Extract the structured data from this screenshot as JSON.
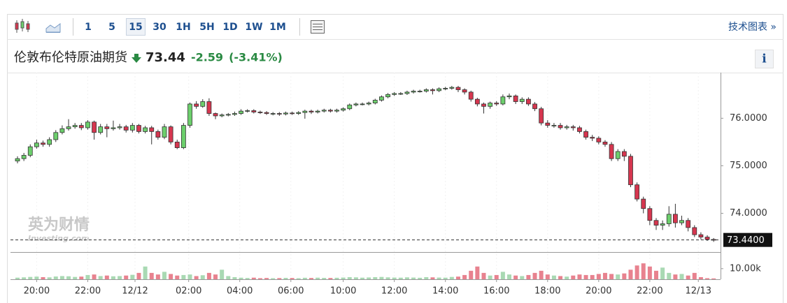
{
  "toolbar": {
    "intervals": [
      "1",
      "5",
      "15",
      "30",
      "1H",
      "5H",
      "1D",
      "1W",
      "1M"
    ],
    "selected_interval": "15",
    "link": "技术图表 »"
  },
  "header": {
    "name": "伦敦布伦特原油期货",
    "price": "73.44",
    "change": "-2.59",
    "change_percent": "(-3.41%)",
    "info": "i"
  },
  "watermark": {
    "brand": "英为财情",
    "site": "Investing.com"
  },
  "chart_data": {
    "type": "candlestick",
    "up_color": "#6ccf6c",
    "down_color": "#d6364f",
    "volume_up_color": "#a9d9b3",
    "volume_down_color": "#e8828f",
    "ylim": [
      73.2,
      76.96
    ],
    "yticks": [
      {
        "value": 76,
        "label": "76.0000"
      },
      {
        "value": 75,
        "label": "75.0000"
      },
      {
        "value": 74,
        "label": "74.0000"
      }
    ],
    "last_price": {
      "value": 73.44,
      "label": "73.4400"
    },
    "y2lim": [
      0,
      25000
    ],
    "y2ticks": [
      {
        "value": 10000,
        "label": "10.00k"
      }
    ],
    "xticks": [
      {
        "value": 3,
        "label": "20:00"
      },
      {
        "value": 11,
        "label": "22:00"
      },
      {
        "value": 18.4,
        "label": "12/12"
      },
      {
        "value": 26.8,
        "label": "02:00"
      },
      {
        "value": 34.8,
        "label": "04:00"
      },
      {
        "value": 42.8,
        "label": "06:00"
      },
      {
        "value": 51,
        "label": "10:00"
      },
      {
        "value": 59,
        "label": "12:00"
      },
      {
        "value": 67,
        "label": "14:00"
      },
      {
        "value": 75,
        "label": "16:00"
      },
      {
        "value": 83,
        "label": "18:00"
      },
      {
        "value": 91,
        "label": "20:00"
      },
      {
        "value": 99,
        "label": "22:00"
      },
      {
        "value": 106.6,
        "label": "12/13"
      }
    ],
    "open": [
      75.1,
      75.15,
      75.22,
      75.4,
      75.48,
      75.45,
      75.55,
      75.7,
      75.78,
      75.82,
      75.85,
      75.8,
      75.92,
      75.7,
      75.82,
      75.78,
      75.8,
      75.82,
      75.75,
      75.85,
      75.72,
      75.8,
      75.72,
      75.6,
      75.82,
      75.5,
      75.38,
      75.85,
      76.3,
      76.25,
      76.35,
      76.1,
      76.05,
      76.07,
      76.08,
      76.1,
      76.15,
      76.16,
      76.13,
      76.12,
      76.1,
      76.1,
      76.09,
      76.11,
      76.1,
      76.12,
      76.15,
      76.13,
      76.15,
      76.17,
      76.15,
      76.17,
      76.2,
      76.28,
      76.3,
      76.3,
      76.32,
      76.38,
      76.45,
      76.5,
      76.52,
      76.52,
      76.55,
      76.57,
      76.57,
      76.6,
      76.58,
      76.62,
      76.63,
      76.65,
      76.6,
      76.55,
      76.4,
      76.3,
      76.25,
      76.32,
      76.3,
      76.45,
      76.47,
      76.35,
      76.4,
      76.3,
      76.2,
      75.9,
      75.85,
      75.85,
      75.8,
      75.82,
      75.8,
      75.72,
      75.6,
      75.58,
      75.5,
      75.45,
      75.15,
      75.3,
      75.2,
      74.6,
      74.3,
      74.1,
      73.85,
      73.75,
      73.78,
      73.98,
      73.8,
      73.85,
      73.7,
      73.55,
      73.5,
      73.45
    ],
    "high": [
      75.2,
      75.27,
      75.45,
      75.55,
      75.53,
      75.6,
      75.75,
      75.85,
      75.98,
      75.9,
      75.9,
      75.96,
      75.95,
      75.88,
      75.88,
      75.95,
      75.88,
      75.86,
      75.9,
      75.88,
      75.84,
      75.84,
      75.76,
      75.88,
      75.85,
      75.55,
      75.9,
      76.33,
      76.36,
      76.4,
      76.42,
      76.12,
      76.1,
      76.11,
      76.14,
      76.19,
      76.19,
      76.19,
      76.16,
      76.15,
      76.13,
      76.13,
      76.14,
      76.14,
      76.15,
      76.18,
      76.18,
      76.18,
      76.2,
      76.2,
      76.2,
      76.23,
      76.31,
      76.33,
      76.33,
      76.35,
      76.41,
      76.48,
      76.53,
      76.55,
      76.55,
      76.58,
      76.6,
      76.6,
      76.63,
      76.63,
      76.65,
      76.66,
      76.68,
      76.68,
      76.63,
      76.58,
      76.43,
      76.33,
      76.35,
      76.36,
      76.5,
      76.52,
      76.5,
      76.44,
      76.44,
      76.34,
      76.24,
      75.96,
      75.9,
      75.9,
      75.86,
      75.86,
      75.84,
      75.76,
      75.65,
      75.62,
      75.54,
      75.5,
      75.35,
      75.35,
      75.25,
      74.65,
      74.35,
      74.15,
      73.9,
      73.85,
      74.15,
      74.2,
      73.95,
      73.9,
      73.75,
      73.6,
      73.54,
      73.48
    ],
    "low": [
      75.05,
      75.1,
      75.18,
      75.36,
      75.4,
      75.4,
      75.5,
      75.66,
      75.74,
      75.78,
      75.75,
      75.76,
      75.55,
      75.66,
      75.6,
      75.74,
      75.76,
      75.7,
      75.7,
      75.68,
      75.68,
      75.45,
      75.55,
      75.56,
      75.45,
      75.35,
      75.35,
      75.8,
      76.2,
      76.22,
      76.05,
      75.98,
      76.02,
      76.04,
      76.05,
      76.07,
      76.12,
      76.1,
      76.09,
      76.07,
      76.06,
      76.05,
      76.06,
      76.07,
      76.07,
      75.99,
      76.09,
      76.1,
      76.12,
      76.12,
      76.12,
      76.14,
      76.17,
      76.25,
      76.27,
      76.27,
      76.29,
      76.35,
      76.42,
      76.47,
      76.49,
      76.49,
      76.52,
      76.54,
      76.54,
      76.5,
      76.55,
      76.59,
      76.6,
      76.55,
      76.5,
      76.35,
      76.25,
      76.1,
      76.2,
      76.26,
      76.27,
      76.4,
      76.3,
      76.3,
      76.26,
      76.15,
      75.85,
      75.8,
      75.8,
      75.76,
      75.76,
      75.74,
      75.68,
      75.55,
      75.52,
      75.45,
      75.4,
      75.1,
      75.1,
      75.1,
      74.55,
      74.25,
      74.0,
      73.75,
      73.65,
      73.65,
      73.72,
      73.7,
      73.75,
      73.62,
      73.5,
      73.45,
      73.42,
      73.4
    ],
    "close": [
      75.15,
      75.22,
      75.4,
      75.48,
      75.45,
      75.55,
      75.7,
      75.78,
      75.82,
      75.85,
      75.8,
      75.92,
      75.7,
      75.82,
      75.78,
      75.8,
      75.82,
      75.75,
      75.85,
      75.72,
      75.8,
      75.72,
      75.6,
      75.82,
      75.5,
      75.38,
      75.85,
      76.3,
      76.25,
      76.35,
      76.1,
      76.05,
      76.07,
      76.08,
      76.1,
      76.15,
      76.16,
      76.13,
      76.12,
      76.1,
      76.1,
      76.09,
      76.11,
      76.1,
      76.12,
      76.15,
      76.13,
      76.15,
      76.17,
      76.15,
      76.17,
      76.2,
      76.28,
      76.3,
      76.3,
      76.32,
      76.38,
      76.45,
      76.5,
      76.52,
      76.52,
      76.55,
      76.57,
      76.57,
      76.6,
      76.58,
      76.62,
      76.63,
      76.65,
      76.6,
      76.55,
      76.4,
      76.3,
      76.25,
      76.32,
      76.3,
      76.45,
      76.47,
      76.35,
      76.4,
      76.3,
      76.2,
      75.9,
      75.85,
      75.85,
      75.8,
      75.82,
      75.8,
      75.72,
      75.6,
      75.58,
      75.5,
      75.45,
      75.15,
      75.3,
      75.2,
      74.6,
      74.3,
      74.1,
      73.85,
      73.75,
      73.78,
      73.98,
      73.8,
      73.85,
      73.7,
      73.55,
      73.5,
      73.45,
      73.44
    ],
    "volume": [
      1500,
      1800,
      2200,
      2500,
      2000,
      1800,
      2600,
      3000,
      2800,
      2200,
      2500,
      4000,
      4500,
      3000,
      3500,
      2800,
      3000,
      3500,
      4200,
      6000,
      12000,
      6000,
      4500,
      7000,
      5000,
      3500,
      4000,
      4500,
      3000,
      3800,
      6000,
      4500,
      9000,
      3000,
      2000,
      1500,
      1200,
      1500,
      1000,
      1200,
      1000,
      1100,
      1300,
      1200,
      1000,
      1400,
      1200,
      1500,
      1300,
      1200,
      1400,
      1600,
      2000,
      1800,
      1500,
      1700,
      2000,
      2200,
      1800,
      1600,
      1500,
      1800,
      1600,
      1400,
      2000,
      1800,
      1600,
      1500,
      2200,
      2500,
      4000,
      8000,
      12000,
      6000,
      3500,
      4000,
      7000,
      4500,
      3500,
      3000,
      4000,
      6000,
      8000,
      4500,
      3500,
      3000,
      2500,
      3500,
      4500,
      4000,
      4000,
      5000,
      6000,
      5000,
      4500,
      5500,
      9000,
      13000,
      15000,
      12000,
      8000,
      11000,
      6000,
      4500,
      5000,
      3500,
      6000,
      2000,
      1000,
      800
    ]
  }
}
